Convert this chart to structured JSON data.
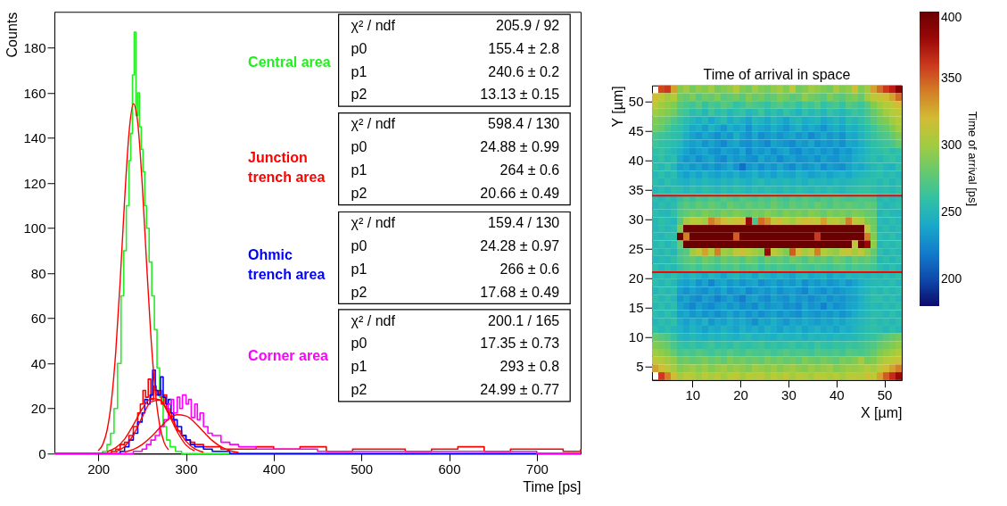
{
  "chart_data": [
    {
      "type": "step",
      "xlabel": "Time [ps]",
      "ylabel": "Counts",
      "xlim": [
        150,
        750
      ],
      "ylim": [
        0,
        196
      ],
      "xticks": [
        200,
        300,
        400,
        500,
        600,
        700
      ],
      "yticks": [
        0,
        20,
        40,
        60,
        80,
        100,
        120,
        140,
        160,
        180
      ],
      "grid": false,
      "series": [
        {
          "name": "Central area",
          "color": "#22ee22",
          "x": [
            150,
            200,
            205,
            210,
            214,
            218,
            222,
            226,
            229,
            232,
            235,
            237,
            239,
            241,
            243,
            245,
            247,
            249,
            251,
            253,
            255,
            258,
            261,
            264,
            267,
            270,
            274,
            278,
            282,
            288,
            295,
            300,
            750
          ],
          "values": [
            0,
            0,
            1,
            4,
            9,
            20,
            40,
            70,
            90,
            110,
            130,
            142,
            168,
            187,
            150,
            160,
            145,
            135,
            125,
            110,
            100,
            85,
            70,
            55,
            38,
            25,
            12,
            6,
            3,
            1,
            0,
            0,
            0
          ]
        },
        {
          "name": "Junction trench area",
          "color": "#ff0000",
          "x": [
            150,
            215,
            220,
            225,
            230,
            235,
            240,
            245,
            248,
            251,
            254,
            257,
            260,
            263,
            266,
            269,
            272,
            275,
            278,
            281,
            284,
            287,
            290,
            295,
            300,
            305,
            310,
            320,
            330,
            340,
            360,
            380,
            400,
            430,
            460,
            490,
            520,
            550,
            580,
            610,
            640,
            670,
            700,
            730,
            750
          ],
          "values": [
            0,
            1,
            2,
            4,
            5,
            8,
            12,
            18,
            22,
            28,
            25,
            33,
            24,
            30,
            26,
            28,
            22,
            26,
            20,
            18,
            15,
            12,
            10,
            8,
            6,
            5,
            4,
            3,
            3,
            2,
            2,
            3,
            2,
            3,
            1,
            2,
            2,
            1,
            2,
            3,
            1,
            2,
            2,
            1,
            2
          ]
        },
        {
          "name": "Ohmic trench area",
          "color": "#0000ff",
          "x": [
            150,
            225,
            230,
            235,
            240,
            245,
            250,
            253,
            256,
            259,
            262,
            265,
            268,
            271,
            274,
            277,
            280,
            283,
            286,
            290,
            295,
            300,
            305,
            310,
            320,
            330,
            340,
            350,
            750
          ],
          "values": [
            0,
            1,
            3,
            6,
            9,
            14,
            18,
            24,
            22,
            26,
            37,
            28,
            26,
            34,
            25,
            22,
            24,
            18,
            15,
            12,
            8,
            6,
            4,
            3,
            2,
            1,
            1,
            0,
            0
          ]
        },
        {
          "name": "Corner area",
          "color": "#ff00ff",
          "x": [
            150,
            240,
            250,
            255,
            260,
            265,
            270,
            275,
            280,
            283,
            286,
            290,
            293,
            296,
            300,
            303,
            306,
            310,
            313,
            316,
            320,
            325,
            330,
            340,
            350,
            360,
            380,
            400,
            450,
            500,
            550,
            600,
            650,
            700,
            750
          ],
          "values": [
            0,
            1,
            2,
            4,
            6,
            8,
            12,
            15,
            22,
            24,
            18,
            25,
            20,
            26,
            22,
            24,
            16,
            22,
            15,
            18,
            12,
            9,
            8,
            5,
            4,
            3,
            2,
            2,
            1,
            1,
            1,
            1,
            1,
            0,
            0
          ]
        },
        {
          "type": "line",
          "color": "#ff0000",
          "x": [
            200,
            205,
            210,
            215,
            220,
            225,
            230,
            235,
            240,
            245,
            250,
            255,
            260,
            265,
            270,
            275,
            280
          ],
          "values": [
            1.3,
            3.9,
            10.3,
            23.2,
            45.4,
            76.7,
            112.2,
            141.9,
            155.2,
            146.9,
            120.3,
            85.2,
            52.2,
            27.6,
            12.7,
            5.0,
            1.7
          ]
        },
        {
          "type": "line",
          "color": "#ff0000",
          "x": [
            210,
            220,
            230,
            240,
            250,
            260,
            270,
            280,
            290,
            300,
            310,
            320
          ],
          "values": [
            0.8,
            2.6,
            6.4,
            12.7,
            19.8,
            24.4,
            23.9,
            18.4,
            11.3,
            5.5,
            2.1,
            0.6
          ]
        },
        {
          "type": "line",
          "color": "#ff0000",
          "x": [
            220,
            230,
            240,
            250,
            260,
            270,
            280,
            290,
            300,
            310
          ],
          "values": [
            0.8,
            3.1,
            8.2,
            16.1,
            22.9,
            23.7,
            17.7,
            9.7,
            3.8,
            1.1
          ]
        },
        {
          "type": "line",
          "color": "#ff0000",
          "x": [
            230,
            240,
            250,
            260,
            270,
            280,
            290,
            300,
            310,
            320,
            330,
            340,
            350,
            360
          ],
          "values": [
            0.7,
            1.8,
            4.0,
            7.3,
            11.4,
            15.2,
            17.2,
            16.7,
            13.8,
            9.7,
            5.8,
            3.0,
            1.3,
            0.5
          ]
        }
      ],
      "annotations": [
        "χ² / ndf",
        "205.9 / 92",
        "p0",
        "155.4 ± 2.8",
        "p1",
        "240.6 ± 0.2",
        "p2",
        "13.13 ± 0.15",
        "χ² / ndf",
        "598.4 / 130",
        "p0",
        "24.88 ± 0.99",
        "p1",
        "264 ± 0.6",
        "p2",
        "20.66 ± 0.49",
        "χ² / ndf",
        "159.4 / 130",
        "p0",
        "24.28 ± 0.97",
        "p1",
        "266 ± 0.6",
        "p2",
        "17.68 ± 0.49",
        "χ² / ndf",
        "200.1 / 165",
        "p0",
        "17.35 ± 0.73",
        "p1",
        "293 ± 0.8",
        "p2",
        "24.99 ± 0.77"
      ]
    },
    {
      "type": "heatmap",
      "title": "Time of arrival in space",
      "xlabel": "X [µm]",
      "ylabel": "Y [µm]",
      "clabel": "Time of arrival [ps]",
      "xlim": [
        1.6,
        53.6
      ],
      "ylim": [
        2.7,
        52.7
      ],
      "xticks": [
        10,
        20,
        30,
        40,
        50
      ],
      "yticks": [
        5,
        10,
        15,
        20,
        25,
        30,
        35,
        40,
        45,
        50
      ],
      "clim": [
        180,
        400
      ],
      "cticks": [
        200,
        250,
        300,
        350,
        400
      ],
      "grid": false,
      "ref_lines": [
        {
          "axis": "y",
          "value": 34,
          "color": "#ff0000"
        },
        {
          "axis": "y",
          "value": 21,
          "color": "#ff0000"
        }
      ],
      "cells": [
        [
          null,
          355,
          360,
          330,
          290,
          300,
          285,
          295,
          290,
          300,
          285,
          290,
          295,
          305,
          290,
          285,
          300,
          290,
          285,
          295,
          300,
          290,
          310,
          285,
          290,
          300,
          295,
          290,
          285,
          300,
          290,
          295,
          320,
          290,
          300,
          330,
          345,
          360,
          370,
          385
        ],
        [
          320,
          310,
          300,
          305,
          285,
          280,
          290,
          275,
          285,
          280,
          290,
          275,
          280,
          285,
          275,
          290,
          280,
          285,
          275,
          280,
          290,
          285,
          275,
          280,
          295,
          285,
          280,
          275,
          290,
          280,
          275,
          285,
          290,
          280,
          300,
          310,
          315,
          320,
          330,
          345
        ],
        [
          310,
          300,
          295,
          290,
          275,
          270,
          265,
          275,
          260,
          270,
          265,
          275,
          270,
          260,
          265,
          275,
          270,
          265,
          260,
          270,
          275,
          265,
          270,
          260,
          270,
          265,
          275,
          260,
          265,
          270,
          260,
          275,
          270,
          265,
          275,
          290,
          300,
          305,
          310,
          320
        ],
        [
          300,
          295,
          290,
          285,
          270,
          265,
          255,
          260,
          250,
          265,
          255,
          260,
          250,
          258,
          262,
          250,
          255,
          265,
          252,
          258,
          250,
          262,
          255,
          248,
          260,
          252,
          258,
          250,
          262,
          255,
          250,
          258,
          265,
          260,
          270,
          280,
          290,
          300,
          305,
          310
        ],
        [
          290,
          285,
          280,
          270,
          262,
          255,
          250,
          245,
          252,
          240,
          248,
          255,
          242,
          250,
          245,
          238,
          252,
          246,
          240,
          250,
          244,
          238,
          248,
          252,
          242,
          246,
          250,
          240,
          245,
          250,
          242,
          255,
          250,
          258,
          265,
          275,
          285,
          290,
          300,
          305
        ],
        [
          285,
          280,
          270,
          262,
          258,
          250,
          240,
          245,
          235,
          248,
          240,
          232,
          245,
          238,
          242,
          230,
          245,
          240,
          235,
          244,
          238,
          232,
          240,
          246,
          236,
          242,
          238,
          230,
          240,
          245,
          238,
          248,
          245,
          252,
          258,
          265,
          275,
          280,
          290,
          300
        ],
        [
          270,
          265,
          262,
          258,
          255,
          245,
          238,
          232,
          240,
          235,
          228,
          238,
          232,
          245,
          236,
          230,
          240,
          228,
          234,
          238,
          230,
          236,
          240,
          232,
          238,
          226,
          234,
          240,
          232,
          238,
          230,
          242,
          240,
          248,
          255,
          262,
          268,
          272,
          280,
          290
        ],
        [
          265,
          260,
          258,
          255,
          250,
          240,
          235,
          240,
          230,
          238,
          232,
          225,
          236,
          240,
          230,
          228,
          236,
          232,
          225,
          238,
          234,
          230,
          226,
          236,
          232,
          240,
          228,
          234,
          230,
          236,
          228,
          240,
          238,
          245,
          252,
          258,
          262,
          265,
          270,
          280
        ],
        [
          258,
          262,
          255,
          250,
          245,
          238,
          230,
          236,
          240,
          232,
          228,
          238,
          234,
          230,
          240,
          225,
          236,
          232,
          238,
          228,
          235,
          240,
          230,
          226,
          236,
          232,
          238,
          230,
          235,
          228,
          236,
          232,
          240,
          244,
          250,
          255,
          258,
          262,
          255,
          260
        ],
        [
          255,
          260,
          252,
          256,
          240,
          232,
          238,
          228,
          235,
          240,
          230,
          226,
          238,
          232,
          236,
          230,
          228,
          240,
          232,
          236,
          226,
          234,
          238,
          230,
          232,
          236,
          228,
          238,
          232,
          230,
          238,
          235,
          242,
          246,
          252,
          256,
          250,
          258,
          262,
          255
        ],
        [
          258,
          252,
          260,
          250,
          236,
          240,
          232,
          238,
          230,
          236,
          228,
          234,
          240,
          230,
          215,
          232,
          238,
          228,
          236,
          230,
          240,
          232,
          226,
          238,
          230,
          234,
          240,
          228,
          236,
          232,
          228,
          238,
          244,
          240,
          248,
          252,
          256,
          250,
          246,
          258
        ],
        [
          252,
          258,
          250,
          255,
          242,
          236,
          244,
          238,
          246,
          240,
          236,
          242,
          238,
          244,
          236,
          240,
          246,
          238,
          242,
          236,
          244,
          240,
          238,
          246,
          242,
          236,
          240,
          244,
          238,
          242,
          246,
          240,
          246,
          250,
          252,
          255,
          258,
          252,
          256,
          250
        ],
        [
          256,
          250,
          258,
          252,
          248,
          244,
          250,
          246,
          252,
          248,
          244,
          250,
          246,
          252,
          248,
          244,
          250,
          254,
          246,
          250,
          248,
          252,
          246,
          250,
          244,
          252,
          248,
          250,
          246,
          252,
          248,
          250,
          252,
          255,
          258,
          256,
          252,
          258,
          250,
          256
        ],
        [
          250,
          256,
          252,
          258,
          255,
          250,
          256,
          252,
          258,
          254,
          250,
          256,
          252,
          258,
          254,
          250,
          256,
          252,
          258,
          254,
          250,
          256,
          252,
          258,
          254,
          250,
          256,
          252,
          258,
          254,
          250,
          256,
          258,
          260,
          262,
          258,
          254,
          256,
          252,
          258
        ],
        [
          255,
          250,
          256,
          252,
          262,
          268,
          262,
          270,
          265,
          272,
          268,
          275,
          270,
          266,
          274,
          270,
          265,
          272,
          268,
          275,
          270,
          265,
          272,
          268,
          276,
          270,
          266,
          272,
          268,
          274,
          270,
          265,
          268,
          272,
          270,
          268,
          252,
          256,
          250,
          254
        ],
        [
          250,
          256,
          252,
          255,
          268,
          275,
          270,
          278,
          272,
          280,
          275,
          270,
          282,
          276,
          272,
          280,
          274,
          278,
          272,
          282,
          276,
          270,
          280,
          274,
          278,
          272,
          282,
          276,
          270,
          278,
          274,
          280,
          276,
          272,
          278,
          275,
          256,
          250,
          254,
          258
        ],
        [
          256,
          252,
          250,
          258,
          272,
          278,
          285,
          280,
          290,
          284,
          278,
          288,
          282,
          290,
          285,
          280,
          288,
          284,
          292,
          286,
          280,
          290,
          284,
          288,
          282,
          292,
          286,
          280,
          290,
          284,
          288,
          282,
          290,
          286,
          280,
          278,
          250,
          256,
          252,
          250
        ],
        [
          252,
          258,
          254,
          250,
          275,
          300,
          310,
          305,
          300,
          340,
          330,
          320,
          310,
          315,
          320,
          380,
          270,
          345,
          335,
          315,
          320,
          305,
          300,
          310,
          320,
          315,
          310,
          330,
          305,
          310,
          300,
          340,
          310,
          305,
          290,
          282,
          254,
          250,
          256,
          252
        ],
        [
          250,
          256,
          252,
          255,
          290,
          400,
          400,
          400,
          400,
          400,
          400,
          400,
          400,
          400,
          400,
          400,
          400,
          400,
          400,
          400,
          400,
          400,
          400,
          400,
          400,
          400,
          400,
          400,
          400,
          400,
          400,
          400,
          400,
          400,
          310,
          285,
          252,
          256,
          250,
          254
        ],
        [
          254,
          250,
          256,
          258,
          400,
          340,
          400,
          400,
          400,
          400,
          400,
          400,
          400,
          350,
          400,
          400,
          400,
          400,
          400,
          400,
          400,
          400,
          400,
          400,
          400,
          400,
          360,
          400,
          400,
          400,
          400,
          400,
          400,
          400,
          340,
          290,
          256,
          252,
          258,
          250
        ],
        [
          252,
          258,
          250,
          256,
          280,
          400,
          400,
          400,
          400,
          400,
          400,
          400,
          400,
          400,
          400,
          400,
          400,
          400,
          400,
          400,
          400,
          400,
          400,
          400,
          400,
          400,
          400,
          400,
          400,
          400,
          400,
          400,
          310,
          400,
          380,
          295,
          250,
          256,
          252,
          258
        ],
        [
          256,
          252,
          258,
          250,
          270,
          275,
          300,
          310,
          330,
          305,
          340,
          300,
          295,
          310,
          320,
          305,
          300,
          295,
          380,
          310,
          300,
          290,
          350,
          320,
          300,
          310,
          340,
          305,
          300,
          295,
          310,
          315,
          300,
          310,
          295,
          280,
          258,
          250,
          256,
          252
        ],
        [
          250,
          254,
          252,
          258,
          268,
          275,
          280,
          272,
          285,
          278,
          270,
          282,
          276,
          280,
          272,
          284,
          278,
          270,
          282,
          276,
          280,
          272,
          284,
          278,
          270,
          282,
          276,
          280,
          272,
          284,
          278,
          270,
          282,
          276,
          280,
          272,
          252,
          258,
          250,
          256
        ],
        [
          258,
          250,
          256,
          252,
          262,
          268,
          272,
          266,
          274,
          270,
          264,
          272,
          268,
          275,
          266,
          270,
          274,
          262,
          270,
          266,
          272,
          268,
          264,
          274,
          270,
          266,
          272,
          268,
          264,
          270,
          274,
          266,
          272,
          268,
          270,
          266,
          256,
          250,
          258,
          252
        ],
        [
          252,
          256,
          250,
          258,
          250,
          244,
          252,
          246,
          240,
          250,
          244,
          238,
          248,
          252,
          242,
          246,
          238,
          250,
          244,
          240,
          248,
          242,
          236,
          246,
          250,
          240,
          244,
          248,
          238,
          246,
          242,
          250,
          246,
          252,
          248,
          254,
          250,
          256,
          252,
          258
        ],
        [
          256,
          250,
          258,
          252,
          240,
          236,
          242,
          230,
          238,
          224,
          236,
          240,
          232,
          238,
          230,
          236,
          240,
          228,
          234,
          238,
          230,
          236,
          232,
          240,
          228,
          236,
          232,
          238,
          230,
          234,
          240,
          232,
          238,
          244,
          250,
          252,
          254,
          250,
          256,
          250
        ],
        [
          250,
          256,
          252,
          255,
          236,
          230,
          238,
          232,
          228,
          236,
          230,
          240,
          228,
          234,
          238,
          226,
          232,
          236,
          230,
          238,
          228,
          234,
          236,
          230,
          224,
          238,
          232,
          228,
          236,
          230,
          234,
          238,
          240,
          246,
          250,
          256,
          250,
          258,
          252,
          256
        ],
        [
          258,
          252,
          256,
          250,
          232,
          238,
          230,
          226,
          236,
          232,
          222,
          230,
          236,
          228,
          220,
          234,
          238,
          230,
          226,
          236,
          232,
          228,
          238,
          230,
          234,
          226,
          232,
          236,
          228,
          234,
          230,
          236,
          238,
          244,
          252,
          256,
          258,
          252,
          256,
          250
        ],
        [
          252,
          258,
          250,
          256,
          238,
          232,
          224,
          236,
          230,
          226,
          234,
          238,
          230,
          236,
          228,
          232,
          226,
          238,
          230,
          234,
          236,
          228,
          232,
          226,
          238,
          230,
          234,
          222,
          236,
          228,
          232,
          238,
          240,
          246,
          250,
          254,
          250,
          256,
          252,
          258
        ],
        [
          256,
          250,
          258,
          252,
          236,
          240,
          232,
          238,
          230,
          236,
          228,
          234,
          240,
          232,
          238,
          230,
          236,
          228,
          234,
          238,
          230,
          236,
          232,
          228,
          238,
          234,
          230,
          236,
          232,
          238,
          230,
          236,
          242,
          248,
          252,
          256,
          256,
          250,
          258,
          252
        ],
        [
          250,
          256,
          252,
          258,
          242,
          236,
          244,
          238,
          246,
          232,
          240,
          236,
          244,
          238,
          242,
          236,
          228,
          240,
          236,
          244,
          238,
          232,
          240,
          236,
          242,
          238,
          234,
          240,
          236,
          242,
          238,
          244,
          246,
          250,
          254,
          258,
          252,
          256,
          250,
          256
        ],
        [
          258,
          252,
          256,
          250,
          246,
          240,
          248,
          242,
          236,
          244,
          240,
          248,
          242,
          238,
          246,
          240,
          244,
          238,
          248,
          242,
          236,
          244,
          240,
          246,
          238,
          242,
          248,
          240,
          244,
          238,
          246,
          242,
          248,
          252,
          256,
          258,
          256,
          250,
          258,
          252
        ],
        [
          280,
          275,
          270,
          262,
          250,
          246,
          252,
          248,
          244,
          250,
          246,
          252,
          248,
          244,
          250,
          254,
          246,
          250,
          248,
          244,
          252,
          248,
          246,
          250,
          244,
          252,
          248,
          250,
          246,
          252,
          248,
          250,
          252,
          256,
          260,
          262,
          268,
          275,
          280,
          285
        ],
        [
          290,
          285,
          280,
          270,
          262,
          258,
          262,
          256,
          260,
          265,
          258,
          262,
          256,
          264,
          260,
          258,
          262,
          266,
          258,
          262,
          256,
          260,
          264,
          258,
          262,
          256,
          266,
          260,
          258,
          262,
          260,
          264,
          262,
          266,
          270,
          272,
          280,
          285,
          290,
          295
        ],
        [
          300,
          295,
          290,
          280,
          268,
          272,
          268,
          275,
          270,
          265,
          272,
          268,
          275,
          270,
          266,
          274,
          270,
          268,
          272,
          265,
          270,
          275,
          268,
          272,
          270,
          266,
          274,
          270,
          268,
          272,
          266,
          275,
          272,
          270,
          275,
          280,
          290,
          295,
          300,
          305
        ],
        [
          310,
          305,
          300,
          295,
          280,
          285,
          278,
          282,
          288,
          280,
          285,
          278,
          290,
          282,
          286,
          280,
          284,
          278,
          288,
          282,
          286,
          280,
          284,
          278,
          290,
          284,
          280,
          286,
          282,
          278,
          288,
          284,
          290,
          300,
          285,
          290,
          300,
          305,
          310,
          315
        ],
        [
          330,
          320,
          310,
          300,
          290,
          295,
          300,
          292,
          298,
          290,
          296,
          300,
          292,
          298,
          294,
          290,
          300,
          296,
          292,
          298,
          290,
          296,
          300,
          294,
          290,
          298,
          292,
          296,
          300,
          290,
          294,
          298,
          296,
          300,
          305,
          300,
          310,
          320,
          330,
          340
        ],
        [
          null,
          360,
          340,
          320,
          300,
          310,
          305,
          300,
          310,
          302,
          308,
          300,
          306,
          312,
          300,
          308,
          304,
          310,
          300,
          306,
          302,
          310,
          300,
          308,
          304,
          300,
          310,
          306,
          302,
          308,
          300,
          306,
          310,
          305,
          320,
          310,
          330,
          350,
          365,
          380
        ]
      ]
    }
  ]
}
